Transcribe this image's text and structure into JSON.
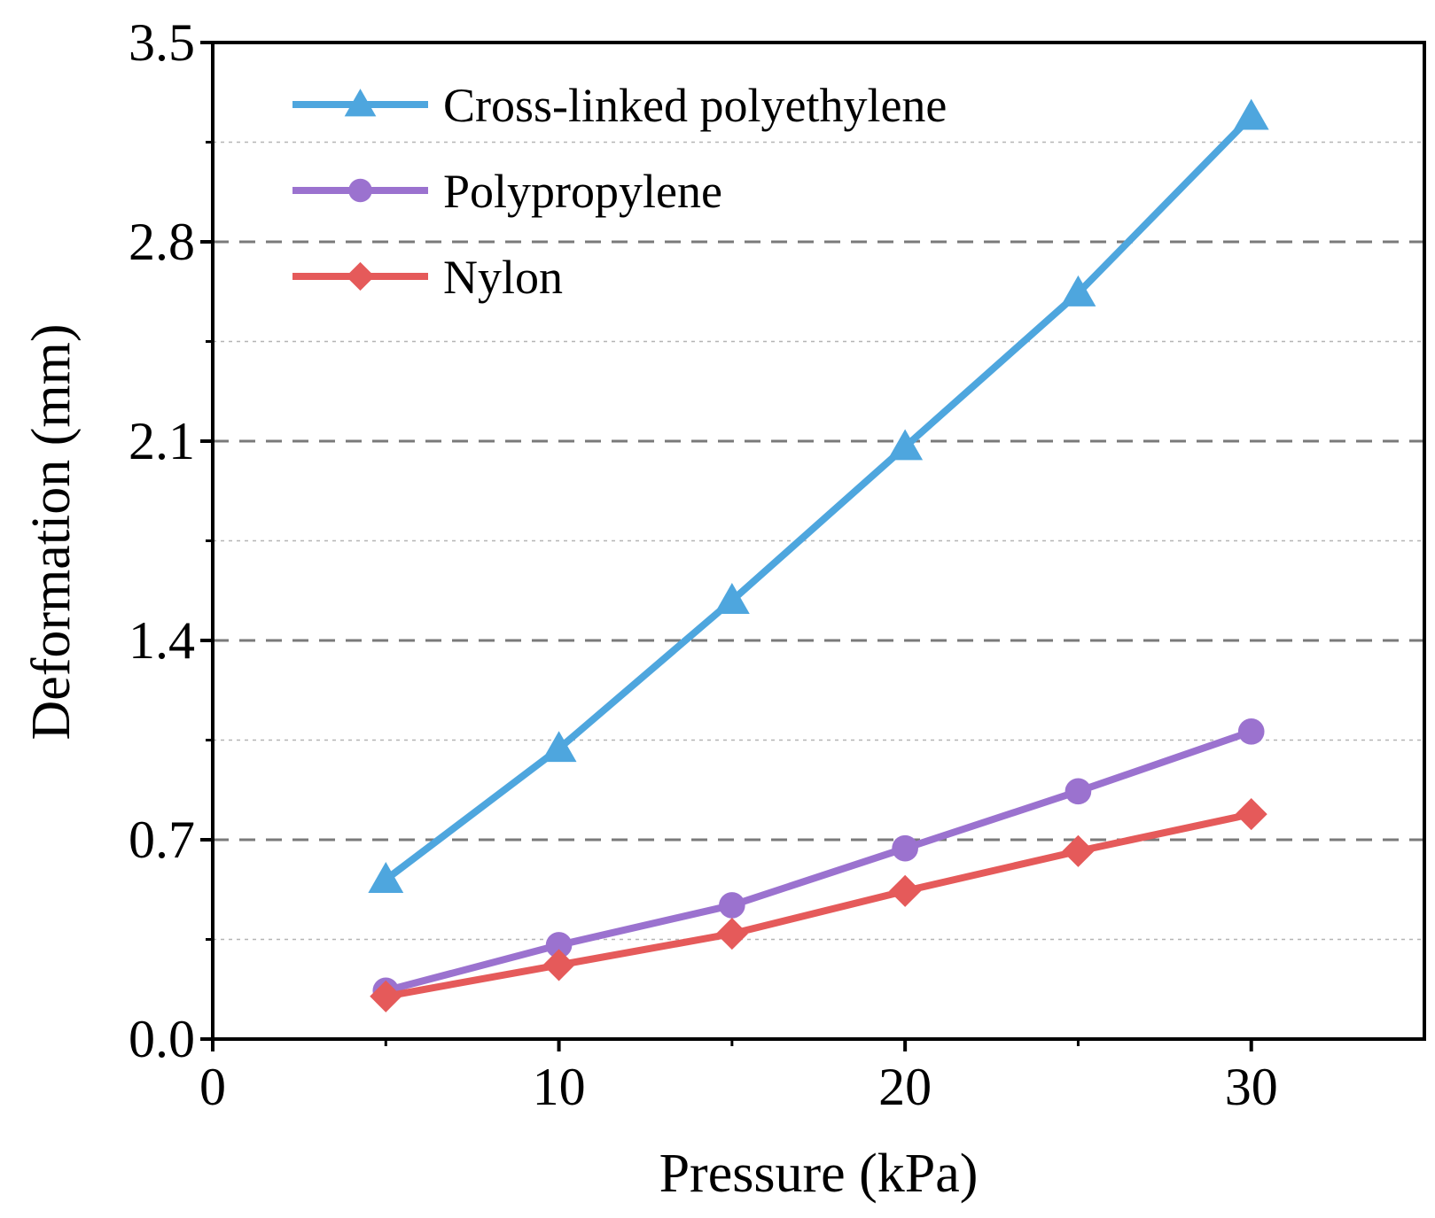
{
  "chart_data": {
    "type": "line",
    "title": "",
    "xlabel": "Pressure (kPa)",
    "ylabel": "Deformation (mm)",
    "xlim": [
      0,
      35
    ],
    "ylim": [
      0,
      3.5
    ],
    "x_ticks": [
      0,
      10,
      20,
      30
    ],
    "y_ticks": [
      0.0,
      0.7,
      1.4,
      2.1,
      2.8,
      3.5
    ],
    "x_tick_labels": [
      "0",
      "10",
      "20",
      "30"
    ],
    "y_tick_labels": [
      "0.0",
      "0.7",
      "1.4",
      "2.1",
      "2.8",
      "3.5"
    ],
    "grid": "horizontal dashed: major lines dark dashed, minor lines light dotted",
    "legend_position": "top-left",
    "x": [
      5,
      10,
      15,
      20,
      25,
      30
    ],
    "series": [
      {
        "name": "Cross-linked polyethylene",
        "marker": "triangle",
        "color": "#4ea6de",
        "values": [
          0.56,
          1.02,
          1.54,
          2.08,
          2.62,
          3.24
        ]
      },
      {
        "name": "Polypropylene",
        "marker": "circle",
        "color": "#9b72cf",
        "values": [
          0.17,
          0.33,
          0.47,
          0.67,
          0.87,
          1.08
        ]
      },
      {
        "name": "Nylon",
        "marker": "diamond",
        "color": "#e55a5a",
        "values": [
          0.15,
          0.26,
          0.37,
          0.52,
          0.66,
          0.79
        ]
      }
    ]
  }
}
